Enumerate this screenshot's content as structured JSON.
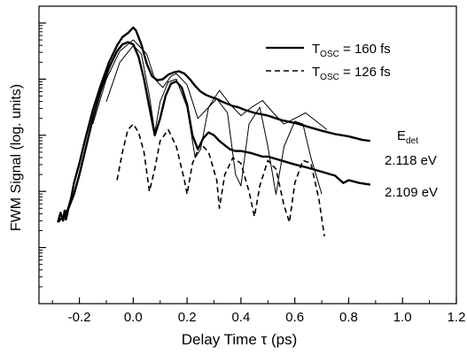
{
  "chart_data": {
    "type": "line",
    "xlabel": "Delay Time τ (ps)",
    "ylabel": "FWM Signal (log. units)",
    "xlim": [
      -0.35,
      1.2
    ],
    "ylim": [
      0,
      5.3
    ],
    "y_scale": "log",
    "grid": false,
    "legend_position": "top-right",
    "x_ticks": [
      {
        "value": -0.2,
        "label": "-0.2"
      },
      {
        "value": 0.0,
        "label": "0.0"
      },
      {
        "value": 0.2,
        "label": "0.2"
      },
      {
        "value": 0.4,
        "label": "0.4"
      },
      {
        "value": 0.6,
        "label": "0.6"
      },
      {
        "value": 0.8,
        "label": "0.8"
      },
      {
        "value": 1.0,
        "label": "1.0"
      },
      {
        "value": 1.2,
        "label": "1.2"
      }
    ],
    "y_major_ticks": [
      1,
      2,
      3,
      4,
      5
    ],
    "legend": [
      {
        "label": "T",
        "subscript": "OSC",
        "suffix": " = 160 fs",
        "style": "solid"
      },
      {
        "label": "T",
        "subscript": "OSC",
        "suffix": " = 126 fs",
        "style": "dashed"
      }
    ],
    "annotations": [
      {
        "text": "E",
        "subscript": "det"
      },
      {
        "text": "2.118 eV"
      },
      {
        "text": "2.109 eV"
      }
    ],
    "series": [
      {
        "style": "thick",
        "x": [
          -0.28,
          -0.27,
          -0.26,
          -0.255,
          -0.25,
          -0.245,
          -0.24,
          -0.23,
          -0.22,
          -0.2,
          -0.18,
          -0.15,
          -0.12,
          -0.09,
          -0.06,
          -0.04,
          -0.02,
          0.0,
          0.01,
          0.03,
          0.05,
          0.07,
          0.09,
          0.11,
          0.13,
          0.15,
          0.17,
          0.19,
          0.21,
          0.23,
          0.25,
          0.27,
          0.29,
          0.31,
          0.33,
          0.35,
          0.37,
          0.39,
          0.41,
          0.43,
          0.45,
          0.5,
          0.55,
          0.6,
          0.65,
          0.7,
          0.75,
          0.8,
          0.85,
          0.88
        ],
        "y": [
          1.45,
          1.62,
          1.48,
          1.66,
          1.5,
          1.6,
          1.72,
          1.9,
          2.15,
          2.5,
          2.9,
          3.45,
          3.9,
          4.3,
          4.6,
          4.75,
          4.82,
          4.92,
          4.87,
          4.62,
          4.28,
          4.05,
          3.98,
          4.0,
          4.08,
          4.12,
          4.14,
          4.1,
          4.0,
          3.88,
          3.78,
          3.72,
          3.68,
          3.65,
          3.6,
          3.56,
          3.52,
          3.5,
          3.46,
          3.43,
          3.4,
          3.35,
          3.27,
          3.22,
          3.15,
          3.08,
          3.02,
          2.98,
          2.92,
          2.9
        ]
      },
      {
        "style": "thick",
        "x": [
          -0.28,
          -0.26,
          -0.24,
          -0.22,
          -0.2,
          -0.18,
          -0.15,
          -0.12,
          -0.09,
          -0.06,
          -0.04,
          -0.02,
          0.0,
          0.02,
          0.04,
          0.06,
          0.08,
          0.1,
          0.12,
          0.14,
          0.16,
          0.18,
          0.2,
          0.22,
          0.24,
          0.26,
          0.28,
          0.3,
          0.32,
          0.34,
          0.36,
          0.38,
          0.4,
          0.42,
          0.44,
          0.46,
          0.48,
          0.5,
          0.55,
          0.6,
          0.65,
          0.7,
          0.75,
          0.78,
          0.8,
          0.84,
          0.88
        ],
        "y": [
          1.45,
          1.55,
          1.7,
          1.95,
          2.3,
          2.7,
          3.3,
          3.8,
          4.2,
          4.5,
          4.62,
          4.66,
          4.62,
          4.4,
          4.0,
          3.5,
          3.0,
          3.3,
          3.7,
          3.92,
          3.96,
          3.85,
          3.55,
          3.0,
          2.75,
          2.95,
          3.05,
          3.0,
          2.9,
          2.82,
          2.75,
          2.72,
          2.72,
          2.7,
          2.68,
          2.65,
          2.62,
          2.62,
          2.55,
          2.48,
          2.42,
          2.35,
          2.28,
          2.15,
          2.2,
          2.15,
          2.12
        ]
      },
      {
        "style": "thin",
        "x": [
          -0.15,
          -0.1,
          -0.05,
          0.0,
          0.05,
          0.08,
          0.11,
          0.14,
          0.16,
          0.2,
          0.24,
          0.28,
          0.32,
          0.36,
          0.4,
          0.44,
          0.48,
          0.52,
          0.56,
          0.6,
          0.64,
          0.68,
          0.72
        ],
        "y": [
          3.2,
          4.0,
          4.5,
          4.7,
          4.45,
          4.0,
          3.85,
          4.05,
          4.1,
          3.9,
          3.3,
          3.5,
          3.8,
          3.55,
          3.35,
          3.5,
          3.62,
          3.4,
          3.2,
          3.3,
          3.4,
          3.25,
          3.1
        ]
      },
      {
        "style": "thin",
        "x": [
          -0.1,
          -0.05,
          0.0,
          0.03,
          0.06,
          0.08,
          0.1,
          0.13,
          0.16,
          0.2,
          0.23,
          0.25,
          0.28,
          0.31,
          0.35,
          0.38,
          0.4,
          0.43,
          0.47,
          0.5,
          0.53,
          0.56,
          0.6,
          0.63,
          0.66,
          0.7
        ],
        "y": [
          3.6,
          4.3,
          4.6,
          4.45,
          3.7,
          3.05,
          3.6,
          3.95,
          4.0,
          3.5,
          2.6,
          2.75,
          3.5,
          3.65,
          3.4,
          2.3,
          2.1,
          3.2,
          3.5,
          2.8,
          1.95,
          2.8,
          3.25,
          3.2,
          2.6,
          1.95
        ]
      },
      {
        "style": "dashed",
        "x": [
          -0.06,
          -0.04,
          -0.02,
          0.0,
          0.02,
          0.04,
          0.06,
          0.08,
          0.1,
          0.13,
          0.16,
          0.19,
          0.2,
          0.22,
          0.25,
          0.28,
          0.31,
          0.32,
          0.34,
          0.37,
          0.4,
          0.43,
          0.45,
          0.47,
          0.5,
          0.53,
          0.56,
          0.58,
          0.6,
          0.63,
          0.66,
          0.69,
          0.71
        ],
        "y": [
          2.2,
          2.7,
          3.1,
          3.2,
          3.05,
          2.7,
          2.0,
          2.4,
          2.9,
          3.1,
          2.8,
          2.2,
          1.95,
          2.5,
          2.85,
          2.7,
          2.2,
          1.7,
          2.3,
          2.6,
          2.5,
          2.0,
          1.55,
          2.1,
          2.55,
          2.4,
          1.75,
          1.45,
          2.15,
          2.55,
          2.5,
          1.85,
          1.2
        ]
      }
    ]
  }
}
